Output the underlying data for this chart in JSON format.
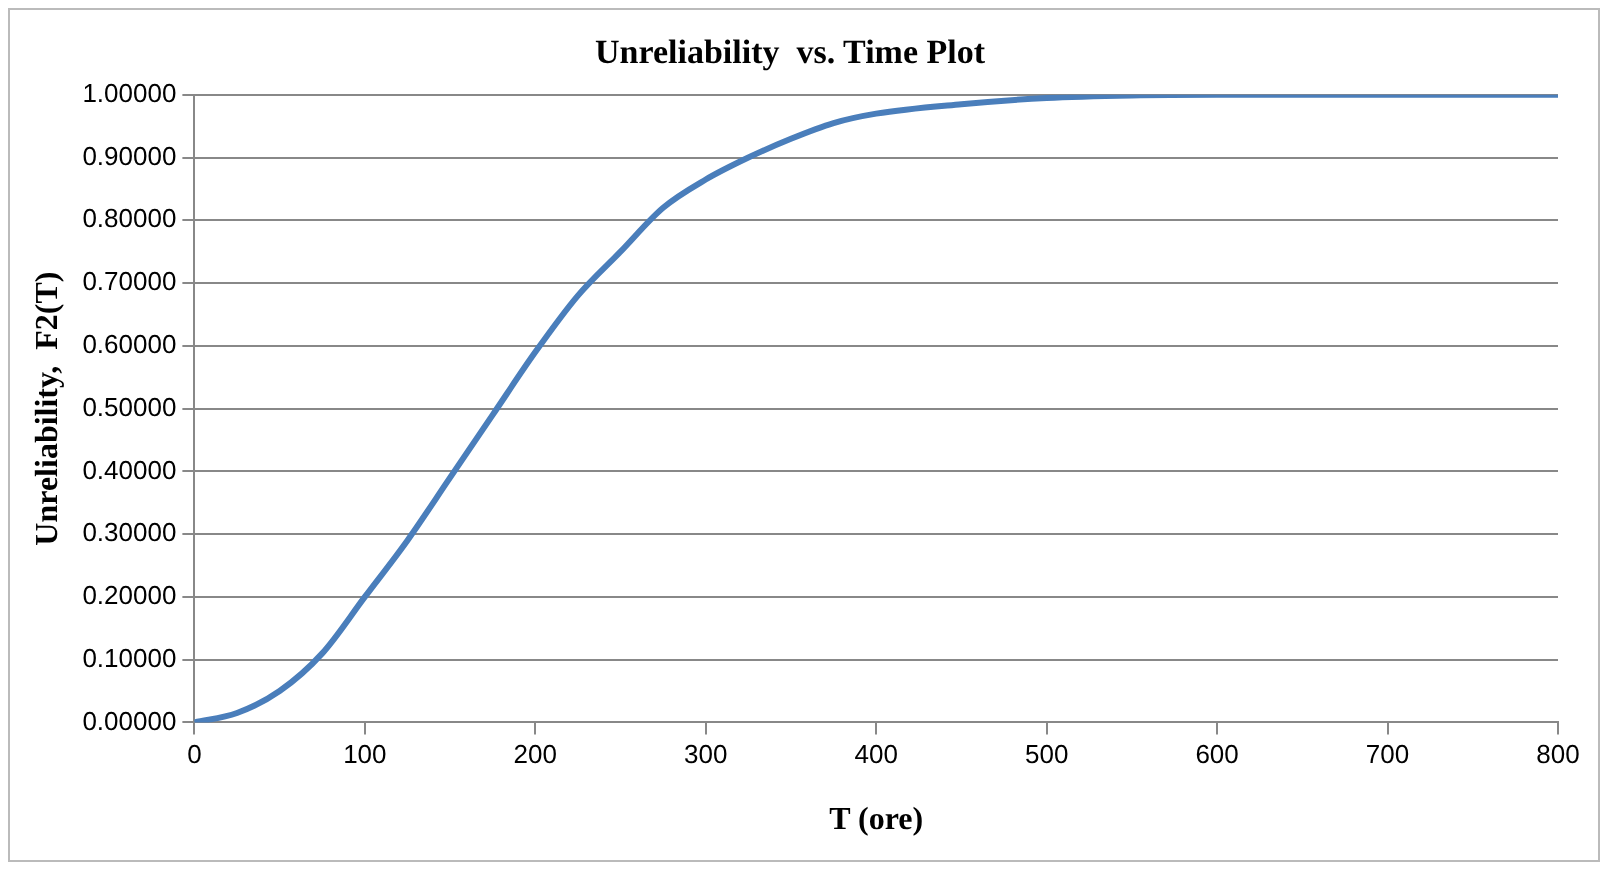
{
  "chart_data": {
    "type": "line",
    "title": "Unreliability  vs. Time Plot",
    "xlabel": "T (ore)",
    "ylabel": "Unreliability,  F2(T)",
    "x": [
      0,
      25,
      50,
      75,
      100,
      125,
      150,
      175,
      200,
      225,
      250,
      275,
      300,
      325,
      350,
      375,
      400,
      450,
      500,
      550,
      600,
      700,
      800
    ],
    "series": [
      {
        "color": "#4a7ebb",
        "values": [
          0,
          0.015,
          0.05,
          0.11,
          0.2,
          0.29,
          0.39,
          0.49,
          0.59,
          0.68,
          0.75,
          0.82,
          0.865,
          0.9,
          0.93,
          0.955,
          0.97,
          0.985,
          0.995,
          0.999,
          1,
          1,
          1
        ]
      }
    ],
    "xlim": [
      0,
      800
    ],
    "xticks": [
      0,
      100,
      200,
      300,
      400,
      500,
      600,
      700,
      800
    ],
    "ylim": [
      0,
      1
    ],
    "yticks": [
      {
        "value": 0,
        "label": "0.00000"
      },
      {
        "value": 0.1,
        "label": "0.10000"
      },
      {
        "value": 0.2,
        "label": "0.20000"
      },
      {
        "value": 0.3,
        "label": "0.30000"
      },
      {
        "value": 0.4,
        "label": "0.40000"
      },
      {
        "value": 0.5,
        "label": "0.50000"
      },
      {
        "value": 0.6,
        "label": "0.60000"
      },
      {
        "value": 0.7,
        "label": "0.70000"
      },
      {
        "value": 0.8,
        "label": "0.80000"
      },
      {
        "value": 0.9,
        "label": "0.90000"
      },
      {
        "value": 1,
        "label": "1.00000"
      }
    ],
    "grid": "y",
    "marker": "none",
    "line_style": "solid"
  }
}
